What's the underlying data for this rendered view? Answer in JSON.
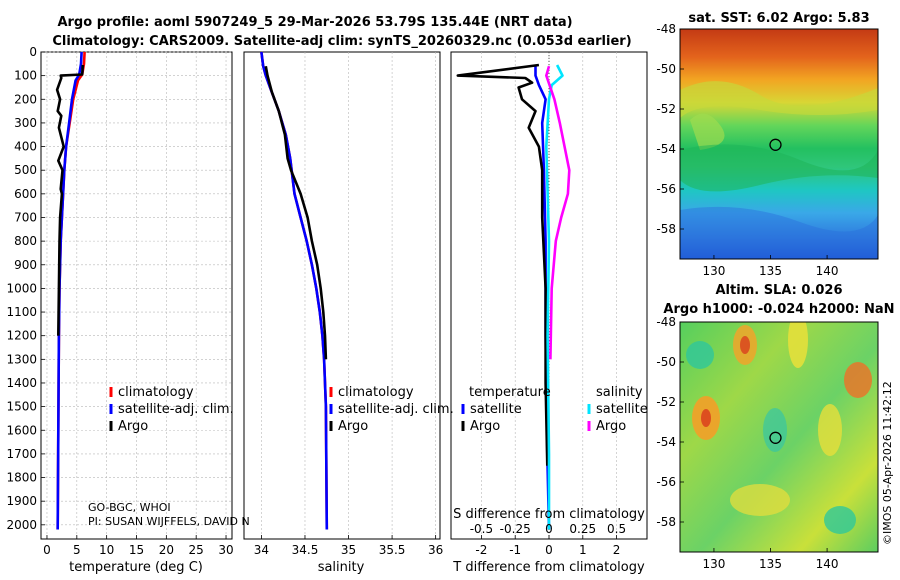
{
  "titles": {
    "line1": "Argo profile: aoml 5907249_5 29-Mar-2026 53.79S 135.44E (NRT data)",
    "line2": "Climatology: CARS2009. Satellite-adj clim: synTS_20260329.nc (0.053d earlier)",
    "sst": "sat. SST: 6.02 Argo: 5.83",
    "sla1": "Altim. SLA: 0.026",
    "sla2": "Argo h1000: -0.024 h2000: NaN"
  },
  "credits": {
    "line1": "GO-BGC, WHOI",
    "line2": "PI: SUSAN WIJFFELS, DAVID N",
    "watermark": "©IMOS 05-Apr-2026 11:42:12"
  },
  "colors": {
    "climatology": "#ff0000",
    "satellite": "#0000ff",
    "argo": "#000000",
    "sat_salinity": "#00e5ff",
    "argo_salinity": "#ff00ff"
  },
  "chart_data": [
    {
      "type": "line",
      "id": "temperature",
      "xlabel": "temperature (deg C)",
      "ylabel": "",
      "xlim": [
        -1,
        31
      ],
      "ylim": [
        2060,
        0
      ],
      "xticks": [
        0,
        5,
        10,
        15,
        20,
        25,
        30
      ],
      "yticks": [
        0,
        100,
        200,
        300,
        400,
        500,
        600,
        700,
        800,
        900,
        1000,
        1100,
        1200,
        1300,
        1400,
        1500,
        1600,
        1700,
        1800,
        1900,
        2000
      ],
      "legend": [
        "climatology",
        "satellite-adj. clim.",
        "Argo"
      ],
      "series": [
        {
          "name": "climatology",
          "color": "#ff0000",
          "x": [
            6.3,
            6.2,
            5.9,
            5.2,
            4.4,
            3.8,
            3.2,
            2.9,
            2.7,
            2.5,
            2.3,
            2.1,
            2.0,
            1.9,
            1.8
          ],
          "y": [
            0,
            50,
            95,
            120,
            200,
            300,
            400,
            500,
            600,
            700,
            800,
            1000,
            1200,
            1600,
            2020
          ]
        },
        {
          "name": "satellite-adj. clim.",
          "color": "#0000ff",
          "x": [
            5.8,
            5.7,
            5.4,
            4.8,
            4.2,
            3.7,
            3.2,
            2.9,
            2.7,
            2.5,
            2.3,
            2.1,
            2.0,
            1.9,
            1.8
          ],
          "y": [
            0,
            50,
            95,
            120,
            200,
            300,
            400,
            500,
            600,
            700,
            800,
            1000,
            1200,
            1600,
            2020
          ]
        },
        {
          "name": "Argo",
          "color": "#000000",
          "x": [
            6.0,
            5.9,
            2.3,
            2.4,
            1.7,
            2.2,
            1.8,
            2.4,
            2.0,
            2.8,
            1.9,
            2.6,
            2.3,
            2.5,
            2.2,
            2.1,
            2.0,
            1.9
          ],
          "y": [
            55,
            95,
            100,
            110,
            160,
            200,
            250,
            270,
            320,
            400,
            460,
            500,
            580,
            600,
            700,
            800,
            1000,
            1200
          ]
        }
      ]
    },
    {
      "type": "line",
      "id": "salinity",
      "xlabel": "salinity",
      "xlim": [
        33.8,
        36.05
      ],
      "ylim": [
        2060,
        0
      ],
      "xticks": [
        34,
        34.5,
        35,
        35.5,
        36
      ],
      "xticklabels": [
        "34",
        "34.5",
        "35",
        "35.5",
        "36"
      ],
      "legend": [
        "climatology",
        "satellite-adj. clim.",
        "Argo"
      ],
      "series": [
        {
          "name": "climatology",
          "color": "#ff0000",
          "x": [
            34.0,
            34.02,
            34.05,
            34.1,
            34.2,
            34.28,
            34.33,
            34.38,
            34.45,
            34.52,
            34.58,
            34.63,
            34.67,
            34.7,
            34.72,
            34.74,
            34.75
          ],
          "y": [
            0,
            60,
            100,
            150,
            250,
            350,
            450,
            600,
            700,
            800,
            900,
            1000,
            1100,
            1200,
            1300,
            1500,
            2020
          ]
        },
        {
          "name": "satellite-adj. clim.",
          "color": "#0000ff",
          "x": [
            34.0,
            34.02,
            34.05,
            34.1,
            34.2,
            34.28,
            34.33,
            34.38,
            34.45,
            34.52,
            34.58,
            34.63,
            34.67,
            34.7,
            34.72,
            34.74,
            34.75
          ],
          "y": [
            0,
            60,
            100,
            150,
            250,
            350,
            450,
            600,
            700,
            800,
            900,
            1000,
            1100,
            1200,
            1300,
            1500,
            2020
          ]
        },
        {
          "name": "Argo",
          "color": "#000000",
          "x": [
            34.05,
            34.07,
            34.12,
            34.2,
            34.27,
            34.3,
            34.34,
            34.45,
            34.53,
            34.58,
            34.64,
            34.68,
            34.71,
            34.73,
            34.74
          ],
          "y": [
            60,
            100,
            170,
            250,
            350,
            450,
            500,
            600,
            700,
            800,
            900,
            1000,
            1100,
            1200,
            1300
          ]
        }
      ]
    },
    {
      "type": "line",
      "id": "difference",
      "xlabel": "T difference from climatology",
      "xlabel_top": "S difference from climatology",
      "xlim": [
        -2.9,
        2.9
      ],
      "ylim": [
        2060,
        0
      ],
      "xticks": [
        -2,
        -1,
        0,
        1,
        2
      ],
      "xticklabels": [
        "-2",
        "-1",
        "0",
        "1",
        "2"
      ],
      "sticks": [
        -0.5,
        -0.25,
        0,
        0.25,
        0.5
      ],
      "sticklabels": [
        "-0.5",
        "-0.25",
        "0",
        "0.25",
        "0.5"
      ],
      "legend_left_title": "temperature",
      "legend_right_title": "salinity",
      "legend_left": [
        "satellite",
        "Argo"
      ],
      "legend_right": [
        "satellite",
        "Argo"
      ],
      "series": [
        {
          "name": "T satellite",
          "color": "#0000ff",
          "x": [
            -0.4,
            -0.4,
            -0.3,
            -0.1,
            -0.2,
            -0.15,
            -0.1,
            -0.1,
            -0.05,
            0.0
          ],
          "y": [
            55,
            100,
            140,
            200,
            300,
            500,
            800,
            1200,
            1700,
            2020
          ]
        },
        {
          "name": "T Argo",
          "color": "#000000",
          "x": [
            -0.3,
            -2.7,
            -0.7,
            -0.5,
            -0.9,
            -0.8,
            -0.4,
            -0.6,
            -0.3,
            -0.2,
            -0.2,
            -0.1,
            -0.1,
            -0.05
          ],
          "y": [
            55,
            100,
            110,
            130,
            150,
            200,
            250,
            320,
            400,
            500,
            700,
            1000,
            1400,
            1750
          ]
        },
        {
          "name": "S satellite",
          "color": "#00e5ff",
          "x": [
            0.06,
            0.1,
            0.02,
            0.0,
            -0.02,
            0.0,
            -0.01,
            0.0,
            0.0
          ],
          "y": [
            55,
            100,
            140,
            200,
            400,
            800,
            1200,
            1700,
            2020
          ]
        },
        {
          "name": "S Argo",
          "color": "#ff00ff",
          "x": [
            0.0,
            -0.02,
            0.04,
            0.08,
            0.15,
            0.14,
            0.09,
            0.05,
            0.02,
            0.01
          ],
          "y": [
            60,
            100,
            200,
            300,
            500,
            600,
            700,
            800,
            1000,
            1300
          ]
        }
      ]
    },
    {
      "type": "heatmap",
      "id": "sst_map",
      "title": "sat. SST: 6.02 Argo: 5.83",
      "xlim": [
        127,
        144.5
      ],
      "ylim": [
        -59.5,
        -48
      ],
      "xticks": [
        130,
        135,
        140
      ],
      "yticks": [
        -48,
        -50,
        -52,
        -54,
        -56,
        -58
      ],
      "marker": {
        "x": 135.44,
        "y": -53.79
      }
    },
    {
      "type": "heatmap",
      "id": "sla_map",
      "title": "Altim. SLA: 0.026",
      "xlim": [
        127,
        144.5
      ],
      "ylim": [
        -59.5,
        -48
      ],
      "xticks": [
        130,
        135,
        140
      ],
      "yticks": [
        -48,
        -50,
        -52,
        -54,
        -56,
        -58
      ],
      "marker": {
        "x": 135.44,
        "y": -53.79
      }
    }
  ]
}
